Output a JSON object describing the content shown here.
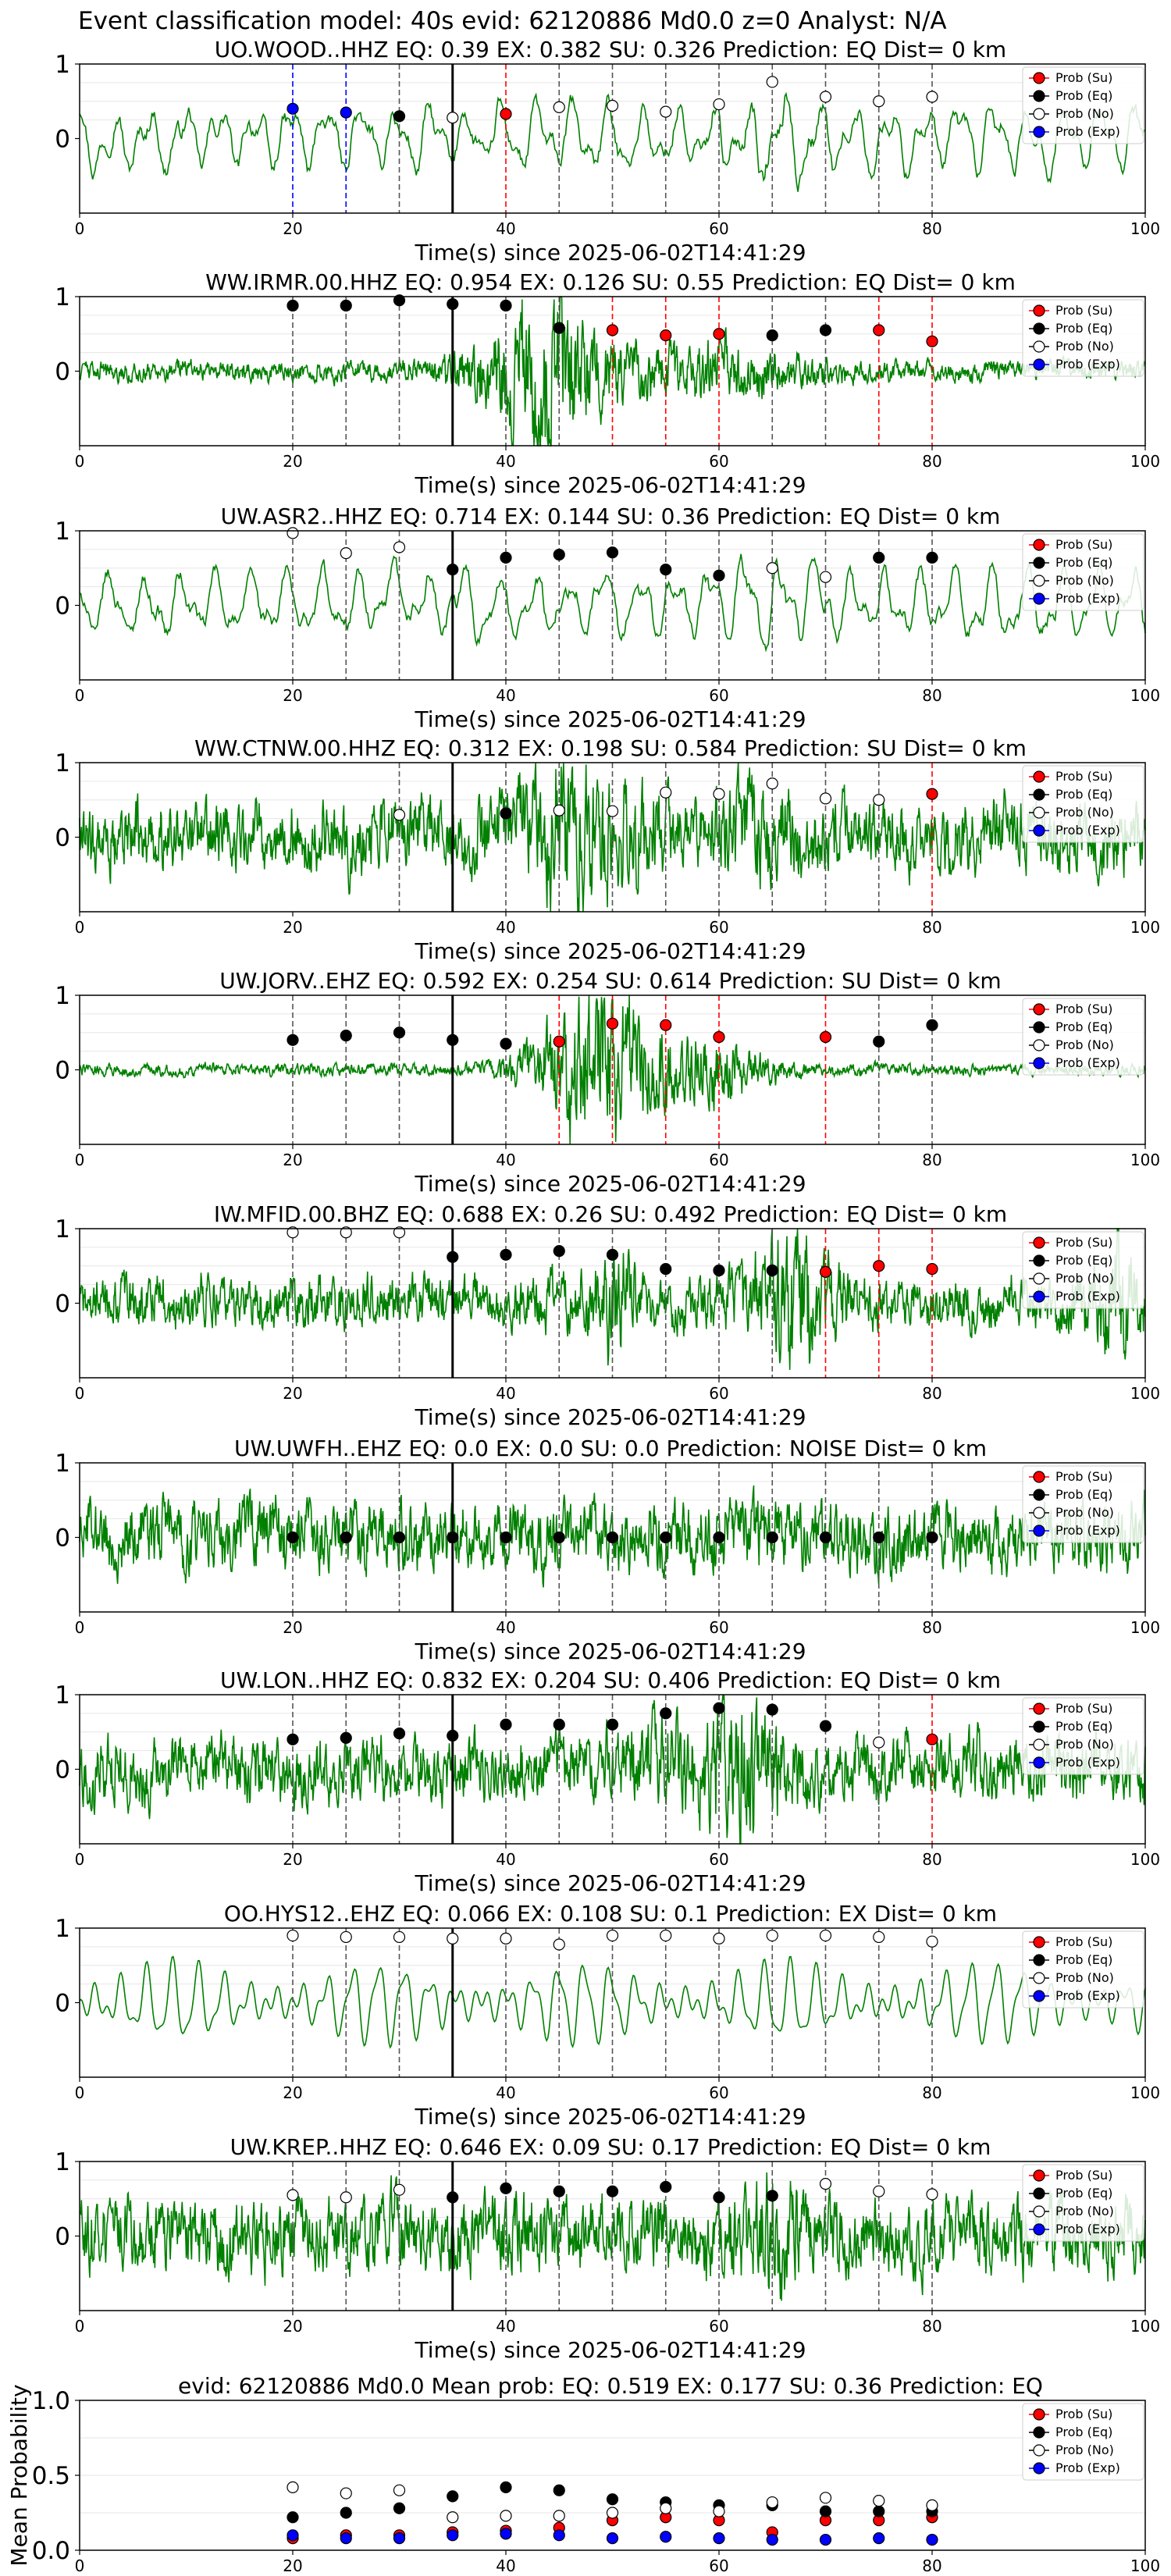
{
  "suptitle": "Event classification model: 40s evid: 62120886 Md0.0 z=0 Analyst: N/A",
  "colors": {
    "waveform": "#008000",
    "su": "#ff0000",
    "eq": "#000000",
    "no": "#ffffff",
    "exp": "#0000ff",
    "pick_line": "#000000"
  },
  "legend_labels": [
    "Prob (Su)",
    "Prob (Eq)",
    "Prob (No)",
    "Prob (Exp)"
  ],
  "chart_data": [
    {
      "type": "line",
      "title": "UO.WOOD..HHZ   EQ: 0.39  EX: 0.382  SU: 0.326   Prediction: EQ    Dist= 0 km",
      "xlabel": "Time(s) since 2025-06-02T14:41:29",
      "ylabel": "",
      "xlim": [
        0,
        100
      ],
      "ylim": [
        -1,
        1
      ],
      "xticks": [
        "0",
        "20",
        "40",
        "60",
        "80",
        "100"
      ],
      "yticks": [
        "0",
        "1"
      ],
      "pick_time": 35,
      "waveform_style": "smooth",
      "grid": true,
      "legend": "upper right",
      "windows": [
        {
          "t": 20,
          "class": "exp",
          "prob": 0.4
        },
        {
          "t": 25,
          "class": "exp",
          "prob": 0.35
        },
        {
          "t": 30,
          "class": "eq",
          "prob": 0.3
        },
        {
          "t": 35,
          "class": "no",
          "prob": 0.28
        },
        {
          "t": 40,
          "class": "su",
          "prob": 0.33
        },
        {
          "t": 45,
          "class": "no",
          "prob": 0.42
        },
        {
          "t": 50,
          "class": "no",
          "prob": 0.44
        },
        {
          "t": 55,
          "class": "no",
          "prob": 0.36
        },
        {
          "t": 60,
          "class": "no",
          "prob": 0.46
        },
        {
          "t": 65,
          "class": "no",
          "prob": 0.76
        },
        {
          "t": 70,
          "class": "no",
          "prob": 0.56
        },
        {
          "t": 75,
          "class": "no",
          "prob": 0.5
        },
        {
          "t": 80,
          "class": "no",
          "prob": 0.56
        }
      ]
    },
    {
      "type": "line",
      "title": "WW.IRMR.00.HHZ   EQ: 0.954  EX: 0.126  SU: 0.55   Prediction: EQ    Dist= 0 km",
      "xlabel": "Time(s) since 2025-06-02T14:41:29",
      "ylabel": "",
      "xlim": [
        0,
        100
      ],
      "ylim": [
        -1,
        1
      ],
      "xticks": [
        "0",
        "20",
        "40",
        "60",
        "80",
        "100"
      ],
      "yticks": [
        "0",
        "1"
      ],
      "pick_time": 35,
      "waveform_style": "burst",
      "grid": true,
      "legend": "upper right",
      "windows": [
        {
          "t": 20,
          "class": "eq",
          "prob": 0.88
        },
        {
          "t": 25,
          "class": "eq",
          "prob": 0.88
        },
        {
          "t": 30,
          "class": "eq",
          "prob": 0.95
        },
        {
          "t": 35,
          "class": "eq",
          "prob": 0.9
        },
        {
          "t": 40,
          "class": "eq",
          "prob": 0.88
        },
        {
          "t": 45,
          "class": "eq",
          "prob": 0.58
        },
        {
          "t": 50,
          "class": "su",
          "prob": 0.55
        },
        {
          "t": 55,
          "class": "su",
          "prob": 0.48
        },
        {
          "t": 60,
          "class": "su",
          "prob": 0.5
        },
        {
          "t": 65,
          "class": "eq",
          "prob": 0.48
        },
        {
          "t": 70,
          "class": "eq",
          "prob": 0.55
        },
        {
          "t": 75,
          "class": "su",
          "prob": 0.55
        },
        {
          "t": 80,
          "class": "su",
          "prob": 0.4
        }
      ]
    },
    {
      "type": "line",
      "title": "UW.ASR2..HHZ   EQ: 0.714  EX: 0.144  SU: 0.36   Prediction: EQ    Dist= 0 km",
      "xlabel": "Time(s) since 2025-06-02T14:41:29",
      "ylabel": "",
      "xlim": [
        0,
        100
      ],
      "ylim": [
        -1,
        1
      ],
      "xticks": [
        "0",
        "20",
        "40",
        "60",
        "80",
        "100"
      ],
      "yticks": [
        "0",
        "1"
      ],
      "pick_time": 35,
      "waveform_style": "smooth",
      "grid": true,
      "legend": "upper right",
      "windows": [
        {
          "t": 20,
          "class": "no",
          "prob": 0.97
        },
        {
          "t": 25,
          "class": "no",
          "prob": 0.7
        },
        {
          "t": 30,
          "class": "no",
          "prob": 0.78
        },
        {
          "t": 35,
          "class": "eq",
          "prob": 0.48
        },
        {
          "t": 40,
          "class": "eq",
          "prob": 0.64
        },
        {
          "t": 45,
          "class": "eq",
          "prob": 0.68
        },
        {
          "t": 50,
          "class": "eq",
          "prob": 0.71
        },
        {
          "t": 55,
          "class": "eq",
          "prob": 0.48
        },
        {
          "t": 60,
          "class": "eq",
          "prob": 0.4
        },
        {
          "t": 65,
          "class": "no",
          "prob": 0.5
        },
        {
          "t": 70,
          "class": "no",
          "prob": 0.38
        },
        {
          "t": 75,
          "class": "eq",
          "prob": 0.64
        },
        {
          "t": 80,
          "class": "eq",
          "prob": 0.64
        }
      ]
    },
    {
      "type": "line",
      "title": "WW.CTNW.00.HHZ   EQ: 0.312  EX: 0.198  SU: 0.584   Prediction: SU    Dist= 0 km",
      "xlabel": "Time(s) since 2025-06-02T14:41:29",
      "ylabel": "",
      "xlim": [
        0,
        100
      ],
      "ylim": [
        -1,
        1
      ],
      "xticks": [
        "0",
        "20",
        "40",
        "60",
        "80",
        "100"
      ],
      "yticks": [
        "0",
        "1"
      ],
      "pick_time": 35,
      "waveform_style": "noisy",
      "grid": true,
      "legend": "upper right",
      "windows": [
        {
          "t": 30,
          "class": "no",
          "prob": 0.3
        },
        {
          "t": 40,
          "class": "eq",
          "prob": 0.32
        },
        {
          "t": 45,
          "class": "no",
          "prob": 0.36
        },
        {
          "t": 50,
          "class": "no",
          "prob": 0.35
        },
        {
          "t": 55,
          "class": "no",
          "prob": 0.6
        },
        {
          "t": 60,
          "class": "no",
          "prob": 0.58
        },
        {
          "t": 65,
          "class": "no",
          "prob": 0.72
        },
        {
          "t": 70,
          "class": "no",
          "prob": 0.52
        },
        {
          "t": 75,
          "class": "no",
          "prob": 0.5
        },
        {
          "t": 80,
          "class": "su",
          "prob": 0.58
        }
      ]
    },
    {
      "type": "line",
      "title": "UW.JORV..EHZ   EQ: 0.592  EX: 0.254  SU: 0.614   Prediction: SU    Dist= 0 km",
      "xlabel": "Time(s) since 2025-06-02T14:41:29",
      "ylabel": "",
      "xlim": [
        0,
        100
      ],
      "ylim": [
        -1,
        1
      ],
      "xticks": [
        "0",
        "20",
        "40",
        "60",
        "80",
        "100"
      ],
      "yticks": [
        "0",
        "1"
      ],
      "pick_time": 35,
      "waveform_style": "quietburst",
      "grid": true,
      "legend": "upper right",
      "windows": [
        {
          "t": 20,
          "class": "eq",
          "prob": 0.4
        },
        {
          "t": 25,
          "class": "eq",
          "prob": 0.46
        },
        {
          "t": 30,
          "class": "eq",
          "prob": 0.5
        },
        {
          "t": 35,
          "class": "eq",
          "prob": 0.4
        },
        {
          "t": 40,
          "class": "eq",
          "prob": 0.35
        },
        {
          "t": 45,
          "class": "su",
          "prob": 0.38
        },
        {
          "t": 50,
          "class": "su",
          "prob": 0.62
        },
        {
          "t": 55,
          "class": "su",
          "prob": 0.6
        },
        {
          "t": 60,
          "class": "su",
          "prob": 0.44
        },
        {
          "t": 70,
          "class": "su",
          "prob": 0.44
        },
        {
          "t": 75,
          "class": "eq",
          "prob": 0.38
        },
        {
          "t": 80,
          "class": "eq",
          "prob": 0.6
        }
      ]
    },
    {
      "type": "line",
      "title": "IW.MFID.00.BHZ   EQ: 0.688  EX: 0.26  SU: 0.492   Prediction: EQ    Dist= 0 km",
      "xlabel": "Time(s) since 2025-06-02T14:41:29",
      "ylabel": "",
      "xlim": [
        0,
        100
      ],
      "ylim": [
        -1,
        1
      ],
      "xticks": [
        "0",
        "20",
        "40",
        "60",
        "80",
        "100"
      ],
      "yticks": [
        "0",
        "1"
      ],
      "pick_time": 35,
      "waveform_style": "lateburst",
      "grid": true,
      "legend": "upper right",
      "windows": [
        {
          "t": 20,
          "class": "no",
          "prob": 0.95
        },
        {
          "t": 25,
          "class": "no",
          "prob": 0.95
        },
        {
          "t": 30,
          "class": "no",
          "prob": 0.95
        },
        {
          "t": 35,
          "class": "eq",
          "prob": 0.62
        },
        {
          "t": 40,
          "class": "eq",
          "prob": 0.65
        },
        {
          "t": 45,
          "class": "eq",
          "prob": 0.7
        },
        {
          "t": 50,
          "class": "eq",
          "prob": 0.65
        },
        {
          "t": 55,
          "class": "eq",
          "prob": 0.46
        },
        {
          "t": 60,
          "class": "eq",
          "prob": 0.44
        },
        {
          "t": 65,
          "class": "eq",
          "prob": 0.44
        },
        {
          "t": 70,
          "class": "su",
          "prob": 0.42
        },
        {
          "t": 75,
          "class": "su",
          "prob": 0.5
        },
        {
          "t": 80,
          "class": "su",
          "prob": 0.46
        }
      ]
    },
    {
      "type": "line",
      "title": "UW.UWFH..EHZ   EQ: 0.0  EX: 0.0  SU: 0.0   Prediction: NOISE    Dist= 0 km",
      "xlabel": "Time(s) since 2025-06-02T14:41:29",
      "ylabel": "",
      "xlim": [
        0,
        100
      ],
      "ylim": [
        -1,
        1
      ],
      "xticks": [
        "0",
        "20",
        "40",
        "60",
        "80",
        "100"
      ],
      "yticks": [
        "0",
        "1"
      ],
      "pick_time": 35,
      "waveform_style": "noisy2",
      "grid": true,
      "legend": "upper right",
      "windows": [
        {
          "t": 20,
          "class": "eq",
          "prob": 0.0
        },
        {
          "t": 25,
          "class": "eq",
          "prob": 0.0
        },
        {
          "t": 30,
          "class": "eq",
          "prob": 0.0
        },
        {
          "t": 35,
          "class": "eq",
          "prob": 0.0
        },
        {
          "t": 40,
          "class": "eq",
          "prob": 0.0
        },
        {
          "t": 45,
          "class": "eq",
          "prob": 0.0
        },
        {
          "t": 50,
          "class": "eq",
          "prob": 0.0
        },
        {
          "t": 55,
          "class": "eq",
          "prob": 0.0
        },
        {
          "t": 60,
          "class": "eq",
          "prob": 0.0
        },
        {
          "t": 65,
          "class": "eq",
          "prob": 0.0
        },
        {
          "t": 70,
          "class": "eq",
          "prob": 0.0
        },
        {
          "t": 75,
          "class": "eq",
          "prob": 0.0
        },
        {
          "t": 80,
          "class": "eq",
          "prob": 0.0
        }
      ]
    },
    {
      "type": "line",
      "title": "UW.LON..HHZ   EQ: 0.832  EX: 0.204  SU: 0.406   Prediction: EQ    Dist= 0 km",
      "xlabel": "Time(s) since 2025-06-02T14:41:29",
      "ylabel": "",
      "xlim": [
        0,
        100
      ],
      "ylim": [
        -1,
        1
      ],
      "xticks": [
        "0",
        "20",
        "40",
        "60",
        "80",
        "100"
      ],
      "yticks": [
        "0",
        "1"
      ],
      "pick_time": 35,
      "waveform_style": "midburst",
      "grid": true,
      "legend": "upper right",
      "windows": [
        {
          "t": 20,
          "class": "eq",
          "prob": 0.4
        },
        {
          "t": 25,
          "class": "eq",
          "prob": 0.42
        },
        {
          "t": 30,
          "class": "eq",
          "prob": 0.48
        },
        {
          "t": 35,
          "class": "eq",
          "prob": 0.45
        },
        {
          "t": 40,
          "class": "eq",
          "prob": 0.6
        },
        {
          "t": 45,
          "class": "eq",
          "prob": 0.6
        },
        {
          "t": 50,
          "class": "eq",
          "prob": 0.6
        },
        {
          "t": 55,
          "class": "eq",
          "prob": 0.75
        },
        {
          "t": 60,
          "class": "eq",
          "prob": 0.82
        },
        {
          "t": 65,
          "class": "eq",
          "prob": 0.8
        },
        {
          "t": 70,
          "class": "eq",
          "prob": 0.58
        },
        {
          "t": 75,
          "class": "no",
          "prob": 0.36
        },
        {
          "t": 80,
          "class": "su",
          "prob": 0.4
        }
      ]
    },
    {
      "type": "line",
      "title": "OO.HYS12..EHZ   EQ: 0.066  EX: 0.108  SU: 0.1   Prediction: EX    Dist= 0 km",
      "xlabel": "Time(s) since 2025-06-02T14:41:29",
      "ylabel": "",
      "xlim": [
        0,
        100
      ],
      "ylim": [
        -1,
        1
      ],
      "xticks": [
        "0",
        "20",
        "40",
        "60",
        "80",
        "100"
      ],
      "yticks": [
        "0",
        "1"
      ],
      "pick_time": 35,
      "waveform_style": "periodic",
      "grid": true,
      "legend": "upper right",
      "windows": [
        {
          "t": 20,
          "class": "no",
          "prob": 0.9
        },
        {
          "t": 25,
          "class": "no",
          "prob": 0.88
        },
        {
          "t": 30,
          "class": "no",
          "prob": 0.88
        },
        {
          "t": 35,
          "class": "no",
          "prob": 0.86
        },
        {
          "t": 40,
          "class": "no",
          "prob": 0.86
        },
        {
          "t": 45,
          "class": "no",
          "prob": 0.78
        },
        {
          "t": 50,
          "class": "no",
          "prob": 0.9
        },
        {
          "t": 55,
          "class": "no",
          "prob": 0.9
        },
        {
          "t": 60,
          "class": "no",
          "prob": 0.86
        },
        {
          "t": 65,
          "class": "no",
          "prob": 0.9
        },
        {
          "t": 70,
          "class": "no",
          "prob": 0.9
        },
        {
          "t": 75,
          "class": "no",
          "prob": 0.88
        },
        {
          "t": 80,
          "class": "no",
          "prob": 0.82
        }
      ]
    },
    {
      "type": "line",
      "title": "UW.KREP..HHZ   EQ: 0.646  EX: 0.09  SU: 0.17   Prediction: EQ    Dist= 0 km",
      "xlabel": "Time(s) since 2025-06-02T14:41:29",
      "ylabel": "",
      "xlim": [
        0,
        100
      ],
      "ylim": [
        -1,
        1
      ],
      "xticks": [
        "0",
        "20",
        "40",
        "60",
        "80",
        "100"
      ],
      "yticks": [
        "0",
        "1"
      ],
      "pick_time": 35,
      "waveform_style": "noisy3",
      "grid": true,
      "legend": "upper right",
      "windows": [
        {
          "t": 20,
          "class": "no",
          "prob": 0.55
        },
        {
          "t": 25,
          "class": "no",
          "prob": 0.52
        },
        {
          "t": 30,
          "class": "no",
          "prob": 0.62
        },
        {
          "t": 35,
          "class": "eq",
          "prob": 0.52
        },
        {
          "t": 40,
          "class": "eq",
          "prob": 0.64
        },
        {
          "t": 45,
          "class": "eq",
          "prob": 0.6
        },
        {
          "t": 50,
          "class": "eq",
          "prob": 0.6
        },
        {
          "t": 55,
          "class": "eq",
          "prob": 0.66
        },
        {
          "t": 60,
          "class": "eq",
          "prob": 0.52
        },
        {
          "t": 65,
          "class": "eq",
          "prob": 0.54
        },
        {
          "t": 70,
          "class": "no",
          "prob": 0.7
        },
        {
          "t": 75,
          "class": "no",
          "prob": 0.6
        },
        {
          "t": 80,
          "class": "no",
          "prob": 0.56
        }
      ]
    },
    {
      "type": "scatter",
      "title": "evid: 62120886  Md0.0   Mean prob:   EQ: 0.519  EX: 0.177  SU: 0.36   Prediction: EQ",
      "xlabel": "",
      "ylabel": "Mean Probability",
      "xlim": [
        0,
        100
      ],
      "ylim": [
        0,
        1
      ],
      "xticks": [
        "0",
        "20",
        "40",
        "60",
        "80",
        "100"
      ],
      "yticks": [
        "0.0",
        "0.5",
        "1.0"
      ],
      "grid": true,
      "legend": "upper right",
      "x": [
        20,
        25,
        30,
        35,
        40,
        45,
        50,
        55,
        60,
        65,
        70,
        75,
        80
      ],
      "series": [
        {
          "name": "Prob (Su)",
          "class": "su",
          "values": [
            0.08,
            0.1,
            0.1,
            0.12,
            0.13,
            0.15,
            0.2,
            0.22,
            0.2,
            0.12,
            0.2,
            0.2,
            0.22
          ]
        },
        {
          "name": "Prob (Eq)",
          "class": "eq",
          "values": [
            0.22,
            0.25,
            0.28,
            0.36,
            0.42,
            0.4,
            0.34,
            0.32,
            0.3,
            0.3,
            0.26,
            0.26,
            0.26
          ]
        },
        {
          "name": "Prob (No)",
          "class": "no",
          "values": [
            0.42,
            0.38,
            0.4,
            0.22,
            0.23,
            0.23,
            0.25,
            0.28,
            0.26,
            0.32,
            0.35,
            0.33,
            0.3
          ]
        },
        {
          "name": "Prob (Exp)",
          "class": "exp",
          "values": [
            0.1,
            0.08,
            0.08,
            0.1,
            0.11,
            0.1,
            0.08,
            0.09,
            0.08,
            0.07,
            0.07,
            0.08,
            0.07
          ]
        }
      ]
    }
  ]
}
